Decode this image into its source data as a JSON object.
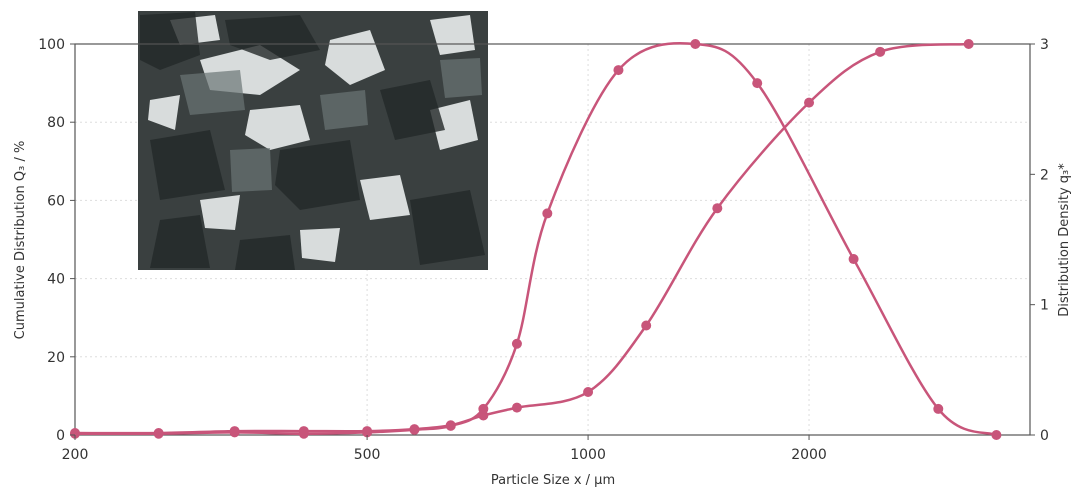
{
  "chart_data": {
    "type": "line",
    "xlabel": "Particle Size x / µm",
    "ylabel_left": "Cumulative Distribution Q₃ / %",
    "ylabel_right": "Distribution Density q₃*",
    "x_scale": "log",
    "xlim": [
      200,
      4000
    ],
    "x_ticks": [
      200,
      500,
      1000,
      2000
    ],
    "y_left_lim": [
      0,
      100
    ],
    "y_left_ticks": [
      0,
      20,
      40,
      60,
      80,
      100
    ],
    "y_right_lim": [
      0,
      3
    ],
    "y_right_ticks": [
      0,
      1,
      2,
      3
    ],
    "grid": true,
    "series": [
      {
        "axis": "left",
        "x": [
          200,
          260,
          330,
          410,
          500,
          580,
          650,
          720,
          800,
          1000,
          1200,
          1500,
          2000,
          2500,
          3300
        ],
        "y": [
          0.5,
          0.5,
          1,
          1,
          1,
          1.5,
          2.5,
          5,
          7,
          11,
          28,
          58,
          85,
          98,
          100
        ]
      },
      {
        "axis": "right",
        "x": [
          200,
          260,
          330,
          410,
          500,
          580,
          650,
          720,
          800,
          880,
          1100,
          1400,
          1700,
          2300,
          3000,
          3600
        ],
        "y": [
          0.01,
          0.01,
          0.02,
          0.01,
          0.02,
          0.04,
          0.07,
          0.2,
          0.7,
          1.7,
          2.8,
          3.0,
          2.7,
          1.35,
          0.2,
          0.0
        ]
      }
    ],
    "colors": {
      "series": "#c8557a",
      "axis": "#555555",
      "image_bg": "#3a4040"
    }
  },
  "icons": {
    "inset": "particle-photo"
  }
}
